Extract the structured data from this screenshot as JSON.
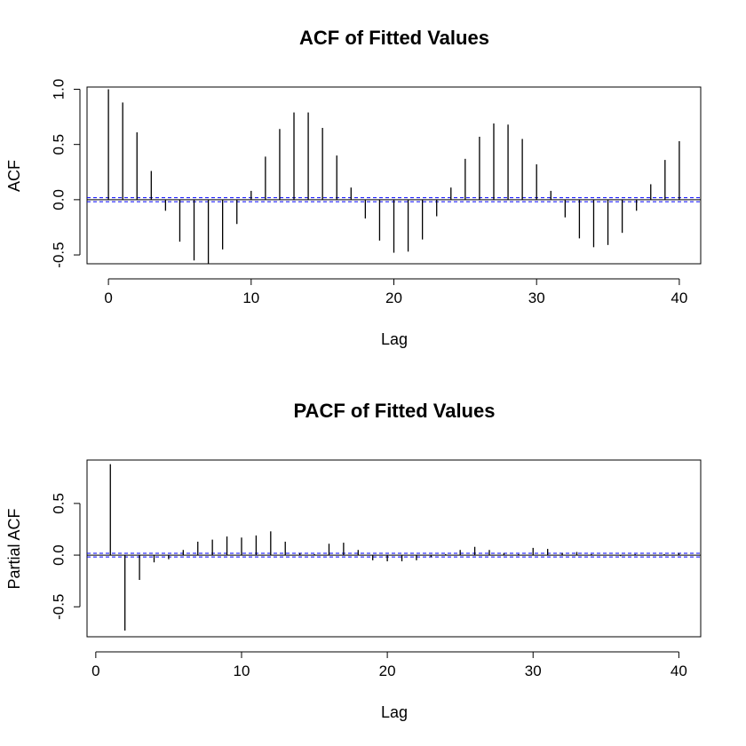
{
  "chart_data": [
    {
      "type": "acf",
      "title": "ACF of Fitted Values",
      "xlabel": "Lag",
      "ylabel": "ACF",
      "xlim": [
        -1.5,
        41.5
      ],
      "ylim": [
        -0.58,
        1.02
      ],
      "x_ticks": [
        0,
        10,
        20,
        30,
        40
      ],
      "y_ticks": [
        -0.5,
        0.0,
        0.5,
        1.0
      ],
      "y_tick_labels": [
        "-0.5",
        "0.0",
        "0.5",
        "1.0"
      ],
      "conf_bound": 0.018,
      "lags": [
        0,
        1,
        2,
        3,
        4,
        5,
        6,
        7,
        8,
        9,
        10,
        11,
        12,
        13,
        14,
        15,
        16,
        17,
        18,
        19,
        20,
        21,
        22,
        23,
        24,
        25,
        26,
        27,
        28,
        29,
        30,
        31,
        32,
        33,
        34,
        35,
        36,
        37,
        38,
        39,
        40
      ],
      "values": [
        1.0,
        0.88,
        0.61,
        0.26,
        -0.1,
        -0.38,
        -0.55,
        -0.58,
        -0.45,
        -0.22,
        0.08,
        0.39,
        0.64,
        0.79,
        0.79,
        0.65,
        0.4,
        0.11,
        -0.17,
        -0.37,
        -0.48,
        -0.47,
        -0.36,
        -0.15,
        0.11,
        0.37,
        0.57,
        0.69,
        0.68,
        0.55,
        0.32,
        0.08,
        -0.16,
        -0.35,
        -0.43,
        -0.41,
        -0.3,
        -0.1,
        0.14,
        0.36,
        0.53
      ],
      "colors": {
        "bars": "#000000",
        "conf": "#0000ff",
        "zero": "#000000"
      }
    },
    {
      "type": "pacf",
      "title": "PACF of Fitted Values",
      "xlabel": "Lag",
      "ylabel": "Partial ACF",
      "xlim": [
        -0.6,
        41.5
      ],
      "ylim": [
        -0.79,
        0.92
      ],
      "x_ticks": [
        0,
        10,
        20,
        30,
        40
      ],
      "y_ticks": [
        -0.5,
        0.0,
        0.5
      ],
      "y_tick_labels": [
        "-0.5",
        "0.0",
        "0.5"
      ],
      "conf_bound": 0.018,
      "lags": [
        1,
        2,
        3,
        4,
        5,
        6,
        7,
        8,
        9,
        10,
        11,
        12,
        13,
        14,
        15,
        16,
        17,
        18,
        19,
        20,
        21,
        22,
        23,
        24,
        25,
        26,
        27,
        28,
        29,
        30,
        31,
        32,
        33,
        34,
        35,
        36,
        37,
        38,
        39,
        40
      ],
      "values": [
        0.88,
        -0.73,
        -0.24,
        -0.07,
        -0.04,
        0.05,
        0.13,
        0.15,
        0.18,
        0.17,
        0.19,
        0.23,
        0.13,
        0.02,
        0.01,
        0.11,
        0.12,
        0.05,
        -0.05,
        -0.06,
        -0.06,
        -0.05,
        -0.02,
        0.01,
        0.05,
        0.08,
        0.05,
        0.02,
        0.01,
        0.07,
        0.06,
        0.02,
        0.03,
        0.01,
        0.0,
        -0.01,
        0.01,
        0.0,
        0.01,
        0.02
      ],
      "colors": {
        "bars": "#000000",
        "conf": "#0000ff",
        "zero": "#000000"
      }
    }
  ]
}
